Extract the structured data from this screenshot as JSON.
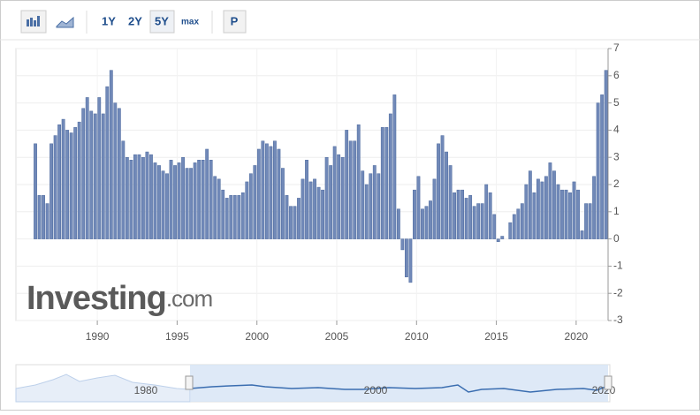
{
  "toolbar": {
    "buttons": [
      "1Y",
      "2Y",
      "5Y",
      "max",
      "P"
    ]
  },
  "watermark": {
    "brand": "Investing",
    "suffix": ".com"
  },
  "navigator": {
    "labels": [
      "1980",
      "2000",
      "2020"
    ]
  },
  "chart_data": {
    "type": "bar",
    "color": "#7189b8",
    "grid": true,
    "xlim": [
      1984.9,
      2022.0
    ],
    "xticks": [
      1990,
      1995,
      2000,
      2005,
      2010,
      2015,
      2020
    ],
    "ylim": [
      -3,
      7
    ],
    "yticks": [
      -3,
      -2,
      -1,
      0,
      1,
      2,
      3,
      4,
      5,
      6,
      7
    ],
    "x": [
      1986,
      1986.25,
      1986.5,
      1986.75,
      1987,
      1987.25,
      1987.5,
      1987.75,
      1988,
      1988.25,
      1988.5,
      1988.75,
      1989,
      1989.25,
      1989.5,
      1989.75,
      1990,
      1990.25,
      1990.5,
      1990.75,
      1991,
      1991.25,
      1991.5,
      1991.75,
      1992,
      1992.25,
      1992.5,
      1992.75,
      1993,
      1993.25,
      1993.5,
      1993.75,
      1994,
      1994.25,
      1994.5,
      1994.75,
      1995,
      1995.25,
      1995.5,
      1995.75,
      1996,
      1996.25,
      1996.5,
      1996.75,
      1997,
      1997.25,
      1997.5,
      1997.75,
      1998,
      1998.25,
      1998.5,
      1998.75,
      1999,
      1999.25,
      1999.5,
      1999.75,
      2000,
      2000.25,
      2000.5,
      2000.75,
      2001,
      2001.25,
      2001.5,
      2001.75,
      2002,
      2002.25,
      2002.5,
      2002.75,
      2003,
      2003.25,
      2003.5,
      2003.75,
      2004,
      2004.25,
      2004.5,
      2004.75,
      2005,
      2005.25,
      2005.5,
      2005.75,
      2006,
      2006.25,
      2006.5,
      2006.75,
      2007,
      2007.25,
      2007.5,
      2007.75,
      2008,
      2008.25,
      2008.5,
      2008.75,
      2009,
      2009.25,
      2009.5,
      2009.75,
      2010,
      2010.25,
      2010.5,
      2010.75,
      2011,
      2011.25,
      2011.5,
      2011.75,
      2012,
      2012.25,
      2012.5,
      2012.75,
      2013,
      2013.25,
      2013.5,
      2013.75,
      2014,
      2014.25,
      2014.5,
      2014.75,
      2015,
      2015.25,
      2015.5,
      2015.75,
      2016,
      2016.25,
      2016.5,
      2016.75,
      2017,
      2017.25,
      2017.5,
      2017.75,
      2018,
      2018.25,
      2018.5,
      2018.75,
      2019,
      2019.25,
      2019.5,
      2019.75,
      2020,
      2020.25,
      2020.5,
      2020.75,
      2021,
      2021.25,
      2021.5,
      2021.75
    ],
    "values": [
      3.5,
      1.6,
      1.6,
      1.3,
      3.5,
      3.8,
      4.2,
      4.4,
      4.0,
      3.9,
      4.1,
      4.3,
      4.8,
      5.2,
      4.7,
      4.6,
      5.2,
      4.6,
      5.6,
      6.2,
      5.0,
      4.8,
      3.6,
      3.0,
      2.9,
      3.1,
      3.1,
      3.0,
      3.2,
      3.1,
      2.8,
      2.7,
      2.5,
      2.4,
      2.9,
      2.7,
      2.8,
      3.0,
      2.6,
      2.6,
      2.8,
      2.9,
      2.9,
      3.3,
      2.9,
      2.3,
      2.2,
      1.8,
      1.5,
      1.6,
      1.6,
      1.6,
      1.7,
      2.1,
      2.4,
      2.7,
      3.3,
      3.6,
      3.5,
      3.4,
      3.6,
      3.3,
      2.6,
      1.6,
      1.2,
      1.2,
      1.5,
      2.2,
      2.9,
      2.1,
      2.2,
      1.9,
      1.8,
      3.0,
      2.7,
      3.4,
      3.1,
      3.0,
      4.0,
      3.6,
      3.6,
      4.2,
      2.5,
      2.0,
      2.4,
      2.7,
      2.4,
      4.1,
      4.1,
      4.6,
      5.3,
      1.1,
      -0.4,
      -1.4,
      -1.6,
      1.8,
      2.3,
      1.1,
      1.2,
      1.4,
      2.2,
      3.5,
      3.8,
      3.2,
      2.7,
      1.7,
      1.8,
      1.8,
      1.5,
      1.6,
      1.2,
      1.3,
      1.3,
      2.0,
      1.7,
      0.9,
      -0.1,
      0.1,
      0.0,
      0.6,
      0.9,
      1.1,
      1.3,
      2.0,
      2.5,
      1.7,
      2.2,
      2.1,
      2.3,
      2.8,
      2.5,
      2.0,
      1.8,
      1.8,
      1.7,
      2.1,
      1.8,
      0.3,
      1.3,
      1.3,
      2.3,
      5.0,
      5.3,
      6.2
    ]
  }
}
